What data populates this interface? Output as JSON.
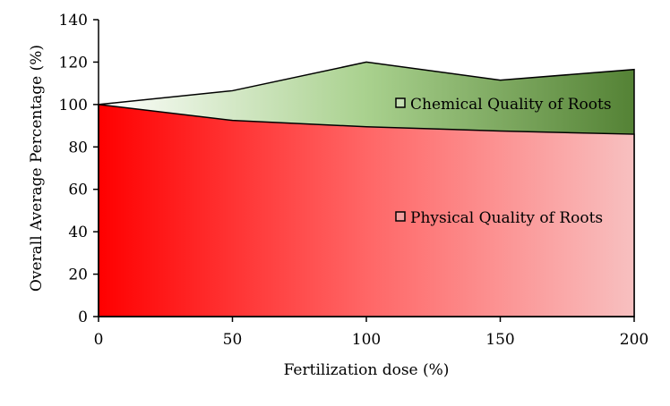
{
  "chart_data": {
    "type": "area",
    "x": [
      0,
      50,
      100,
      150,
      200
    ],
    "series": [
      {
        "name": "Chemical Quality of Roots",
        "values": [
          100,
          106.5,
          120,
          111.5,
          116.5
        ],
        "gradient": [
          "#ffffff",
          "#a9d18e",
          "#548235"
        ]
      },
      {
        "name": "Physical Quality of Roots",
        "values": [
          100,
          92.5,
          89.5,
          87.5,
          86
        ],
        "gradient": [
          "#ff0000",
          "#ff6666",
          "#f8c0c0"
        ]
      }
    ],
    "xlabel": "Fertilization dose (%)",
    "ylabel": "Overall Average Percentage (%)",
    "xlim": [
      0,
      200
    ],
    "ylim": [
      0,
      140
    ],
    "xticks": [
      "0",
      "50",
      "100",
      "150",
      "200"
    ],
    "yticks": [
      "0",
      "20",
      "40",
      "60",
      "80",
      "100",
      "120",
      "140"
    ],
    "grid": false,
    "legend": "inside-right"
  }
}
